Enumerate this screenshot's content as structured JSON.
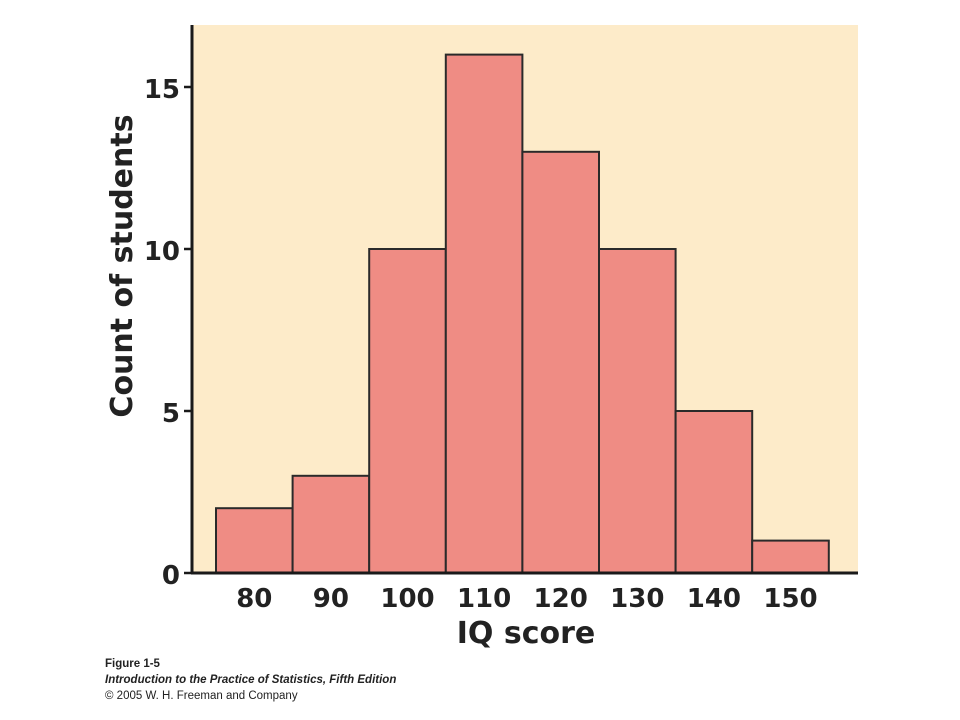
{
  "chart_data": {
    "type": "bar",
    "categories": [
      "80",
      "90",
      "100",
      "110",
      "120",
      "130",
      "140",
      "150"
    ],
    "values": [
      2,
      3,
      10,
      16,
      13,
      10,
      5,
      1
    ],
    "xlabel": "IQ score",
    "ylabel": "Count of students",
    "ylim": [
      0,
      17
    ],
    "yticks": [
      "0",
      "5",
      "10",
      "15"
    ],
    "grid": false,
    "colors": {
      "plot_background": "#fdebc9",
      "bar_fill": "#ef8c84",
      "bar_stroke": "#2a2a2a",
      "axis": "#1a1a1a",
      "text": "#222222"
    }
  },
  "caption": {
    "figure_label": "Figure 1-5",
    "book_title": "Introduction to the Practice of Statistics, Fifth Edition",
    "copyright": "© 2005 W. H. Freeman and Company"
  }
}
